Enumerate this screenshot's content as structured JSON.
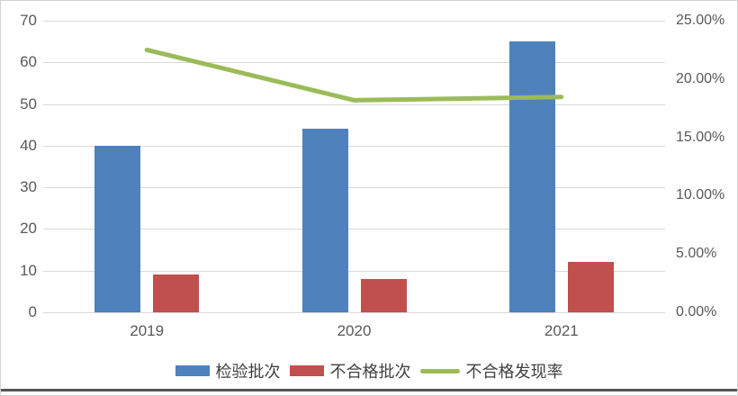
{
  "colors": {
    "bar_blue": "#4F81BD",
    "bar_red": "#C0504D",
    "line_green": "#9BBB59",
    "grid": "#d9d9d9",
    "tick_text": "#595959",
    "legend_text": "#404040",
    "chart_border": "#d3d3d3",
    "bottom_rule": "#565656"
  },
  "chart_data": {
    "type": "combo",
    "title": "",
    "categories": [
      "2019",
      "2020",
      "2021"
    ],
    "series": [
      {
        "key": "inspection-batches",
        "name": "检验批次",
        "kind": "bar",
        "axis": "left",
        "color": "#4F81BD",
        "values": [
          40,
          44,
          65
        ]
      },
      {
        "key": "unqualified-batches",
        "name": "不合格批次",
        "kind": "bar",
        "axis": "left",
        "color": "#C0504D",
        "values": [
          9,
          8,
          12
        ]
      },
      {
        "key": "defect-discovery-rate",
        "name": "不合格发现率",
        "kind": "line",
        "axis": "right",
        "color": "#9BBB59",
        "values": [
          22.5,
          18.18,
          18.46
        ]
      }
    ],
    "left_axis": {
      "min": 0,
      "max": 70,
      "step": 10,
      "tick_labels": [
        "0",
        "10",
        "20",
        "30",
        "40",
        "50",
        "60",
        "70"
      ]
    },
    "right_axis": {
      "min": 0,
      "max": 25,
      "step": 5,
      "tick_labels": [
        "0.00%",
        "5.00%",
        "10.00%",
        "15.00%",
        "20.00%",
        "25.00%"
      ]
    },
    "grid": true,
    "legend_position": "bottom",
    "xlabel": "",
    "ylabel_left": "",
    "ylabel_right": ""
  }
}
